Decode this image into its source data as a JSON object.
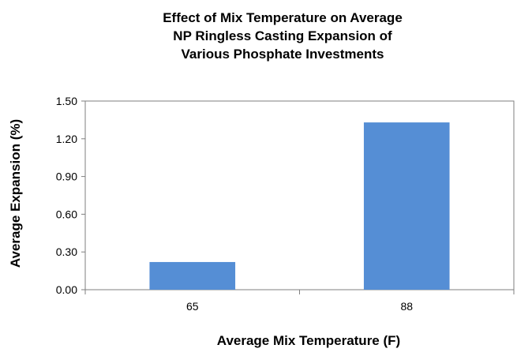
{
  "chart_data": {
    "type": "bar",
    "title": "Effect of Mix Temperature on Average NP Ringless Casting Expansion of Various Phosphate Investments",
    "title_lines": [
      "Effect of Mix Temperature on Average",
      "NP Ringless Casting Expansion of",
      "Various Phosphate Investments"
    ],
    "xlabel": "Average Mix Temperature (F)",
    "ylabel": "Average Expansion (%)",
    "categories": [
      "65",
      "88"
    ],
    "values": [
      0.22,
      1.33
    ],
    "ylim": [
      0,
      1.5
    ],
    "yticks": [
      "0.00",
      "0.30",
      "0.60",
      "0.90",
      "1.20",
      "1.50"
    ],
    "grid": false,
    "legend": "none",
    "bar_color": "#558ED5",
    "axis_color": "#7F7F7F"
  }
}
